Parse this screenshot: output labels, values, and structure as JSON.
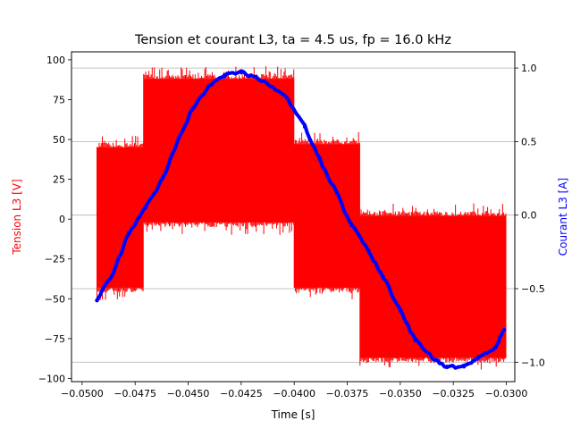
{
  "chart_data": {
    "type": "line",
    "title": "Tension et courant L3, ta = 4.5 us, fp = 16.0 kHz",
    "xlabel": "Time [s]",
    "ylabel_left": "Tension L3 [V]",
    "ylabel_right": "Courant L3 [A]",
    "xlim": [
      -0.0505,
      -0.0296
    ],
    "ylim_left": [
      -102,
      105
    ],
    "ylim_right": [
      -1.132,
      1.11
    ],
    "x_ticks": [
      -0.05,
      -0.0475,
      -0.045,
      -0.0425,
      -0.04,
      -0.0375,
      -0.035,
      -0.0325,
      -0.03
    ],
    "x_tick_labels": [
      "−0.0500",
      "−0.0475",
      "−0.0450",
      "−0.0425",
      "−0.0400",
      "−0.0375",
      "−0.0350",
      "−0.0325",
      "−0.0300"
    ],
    "y_ticks_left": [
      100,
      75,
      50,
      25,
      0,
      -25,
      -50,
      -75,
      -100
    ],
    "y_tick_labels_left": [
      "100",
      "75",
      "50",
      "25",
      "0",
      "−25",
      "−50",
      "−75",
      "−100"
    ],
    "y_ticks_right": [
      1.0,
      0.5,
      0.0,
      -0.5,
      -1.0
    ],
    "y_tick_labels_right": [
      "1.0",
      "0.5",
      "0.0",
      "−0.5",
      "−1.0"
    ],
    "grid": "horizontal, right axis",
    "series": [
      {
        "name": "Tension L3",
        "axis": "left",
        "color": "#ff0000",
        "kind": "switching band",
        "segments": [
          {
            "x_start": -0.0493,
            "x_end": -0.0471,
            "low": -43,
            "high": 45
          },
          {
            "x_start": -0.0471,
            "x_end": -0.04,
            "low": -2,
            "high": 88
          },
          {
            "x_start": -0.04,
            "x_end": -0.0369,
            "low": -43,
            "high": 47
          },
          {
            "x_start": -0.0369,
            "x_end": -0.03,
            "low": -87,
            "high": 2
          }
        ]
      },
      {
        "name": "Courant L3",
        "axis": "right",
        "color": "#0000ff",
        "kind": "line",
        "x": [
          -0.0493,
          -0.0485,
          -0.0478,
          -0.047,
          -0.0462,
          -0.0455,
          -0.0448,
          -0.044,
          -0.0433,
          -0.0425,
          -0.0418,
          -0.041,
          -0.0403,
          -0.0395,
          -0.0388,
          -0.038,
          -0.0373,
          -0.0365,
          -0.0358,
          -0.035,
          -0.0343,
          -0.0335,
          -0.0328,
          -0.032,
          -0.0313,
          -0.0305,
          -0.0301
        ],
        "y": [
          -0.58,
          -0.38,
          -0.12,
          0.05,
          0.25,
          0.5,
          0.72,
          0.88,
          0.95,
          0.97,
          0.94,
          0.87,
          0.79,
          0.6,
          0.38,
          0.15,
          -0.07,
          -0.24,
          -0.42,
          -0.65,
          -0.85,
          -0.97,
          -1.03,
          -1.03,
          -0.97,
          -0.9,
          -0.78
        ]
      }
    ]
  }
}
